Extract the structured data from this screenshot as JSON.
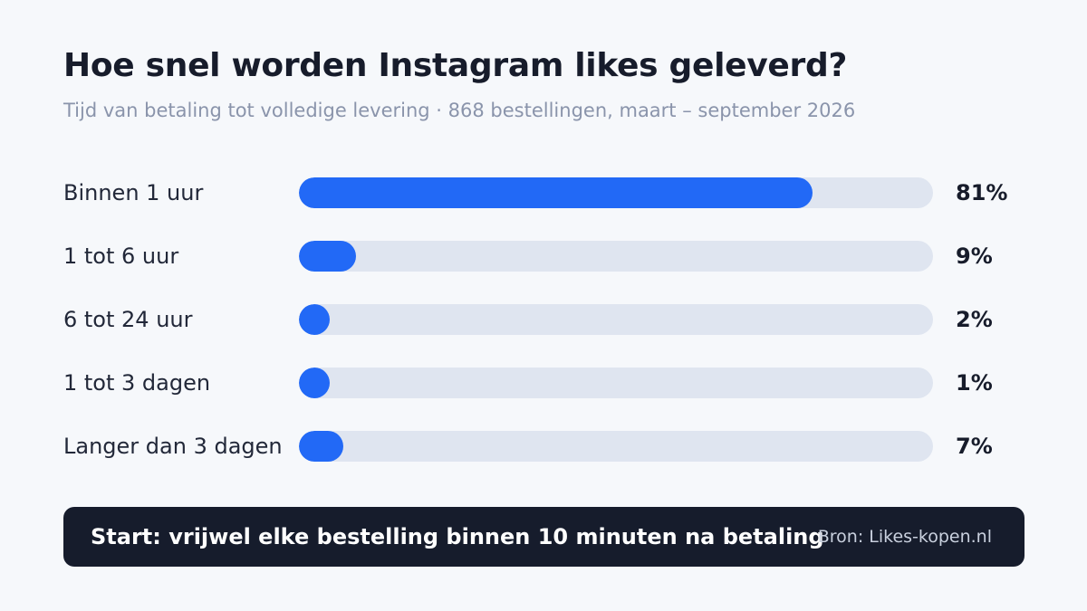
{
  "chart_data": {
    "type": "bar",
    "orientation": "horizontal",
    "title": "Hoe snel worden Instagram likes geleverd?",
    "subtitle": "Tijd van betaling tot volledige levering · 868 bestellingen, maart – september 2026",
    "categories": [
      "Binnen 1 uur",
      "1 tot 6 uur",
      "6 tot 24 uur",
      "1 tot 3 dagen",
      "Langer dan 3 dagen"
    ],
    "values": [
      81,
      9,
      2,
      1,
      7
    ],
    "value_labels": [
      "81%",
      "9%",
      "2%",
      "1%",
      "7%"
    ],
    "xlim": [
      0,
      100
    ],
    "unit": "%",
    "grid": false,
    "colors": {
      "bar": "#2269f6",
      "track": "#dfe5f0",
      "background": "#f6f8fb"
    }
  },
  "footer": {
    "text": "Start: vrijwel elke bestelling binnen 10 minuten na betaling",
    "source": "Bron: Likes-kopen.nl",
    "background": "#161c2c"
  }
}
